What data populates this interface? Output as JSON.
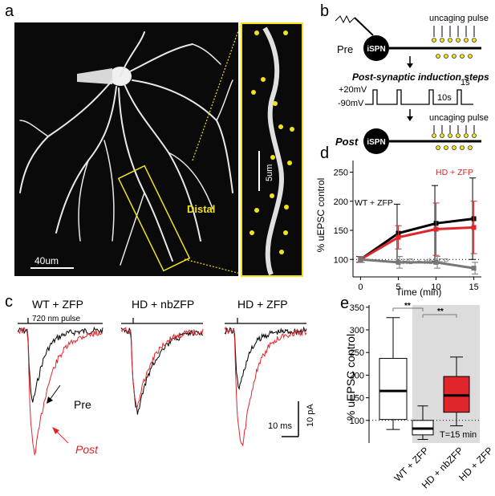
{
  "panels": {
    "a": {
      "letter": "a",
      "distal_label": "Distal",
      "scale_40": "40um",
      "scale_5": "5um"
    },
    "b": {
      "letter": "b",
      "pre_label": "Pre",
      "post_label": "Post",
      "cell_label": "iSPN",
      "uncaging_label": "uncaging pulse",
      "induction_title": "Post-synaptic induction steps",
      "v_high": "+20mV",
      "v_low": "-90mV",
      "t_1s": "1s",
      "t_10s": "10s"
    },
    "c": {
      "letter": "c",
      "group1": "WT + ZFP",
      "group2": "HD + nbZFP",
      "group3": "HD + ZFP",
      "pulse_label": "720 nm pulse",
      "pre_label": "Pre",
      "post_label": "Post",
      "scale_time": "10 ms",
      "scale_amp": "10 pA"
    },
    "d": {
      "letter": "d",
      "ylabel": "% uEPSC control",
      "xlabel": "Time (min)",
      "label_wt": "WT + ZFP",
      "label_hd_zfp": "HD + ZFP",
      "label_hd_nb": "HD + nbZFP",
      "yticks": [
        "100",
        "150",
        "200",
        "250"
      ],
      "xticks": [
        "0",
        "5",
        "10",
        "15"
      ]
    },
    "e": {
      "letter": "e",
      "ylabel": "% uEPSC control",
      "yticks": [
        "100",
        "150",
        "200",
        "250",
        "300",
        "350"
      ],
      "categories": [
        "WT + ZFP",
        "HD + nbZFP",
        "HD + ZFP"
      ],
      "sig1": "**",
      "sig2": "**",
      "time_note": "T=15 min"
    }
  },
  "colors": {
    "red": "#e0262b",
    "gray": "#777777",
    "yellow": "#f2e21a",
    "shade": "#dcdcdc"
  },
  "chart_data": [
    {
      "type": "line",
      "panel": "d",
      "x": [
        0,
        5,
        10,
        15
      ],
      "series": [
        {
          "name": "WT + ZFP",
          "values": [
            100,
            145,
            162,
            170
          ],
          "err": [
            5,
            50,
            65,
            70
          ],
          "color": "#000000"
        },
        {
          "name": "HD + ZFP",
          "values": [
            100,
            138,
            152,
            155
          ],
          "err": [
            5,
            20,
            45,
            45
          ],
          "color": "#e0262b"
        },
        {
          "name": "HD + nbZFP",
          "values": [
            100,
            95,
            95,
            85
          ],
          "err": [
            5,
            10,
            10,
            10
          ],
          "color": "#777777"
        }
      ],
      "ylabel": "% uEPSC control",
      "xlabel": "Time (min)",
      "ylim": [
        70,
        270
      ],
      "xlim": [
        -1,
        16
      ]
    },
    {
      "type": "box",
      "panel": "e",
      "categories": [
        "WT + ZFP",
        "HD + nbZFP",
        "HD + ZFP"
      ],
      "boxes": [
        {
          "min": 80,
          "q1": 102,
          "median": 165,
          "q3": 237,
          "max": 327,
          "fill": "#ffffff"
        },
        {
          "min": 58,
          "q1": 68,
          "median": 82,
          "q3": 100,
          "max": 132,
          "fill": "#ffffff"
        },
        {
          "min": 88,
          "q1": 118,
          "median": 155,
          "q3": 197,
          "max": 240,
          "fill": "#e0262b"
        }
      ],
      "ylabel": "% uEPSC control",
      "ylim": [
        50,
        355
      ],
      "note": "T=15 min"
    }
  ]
}
